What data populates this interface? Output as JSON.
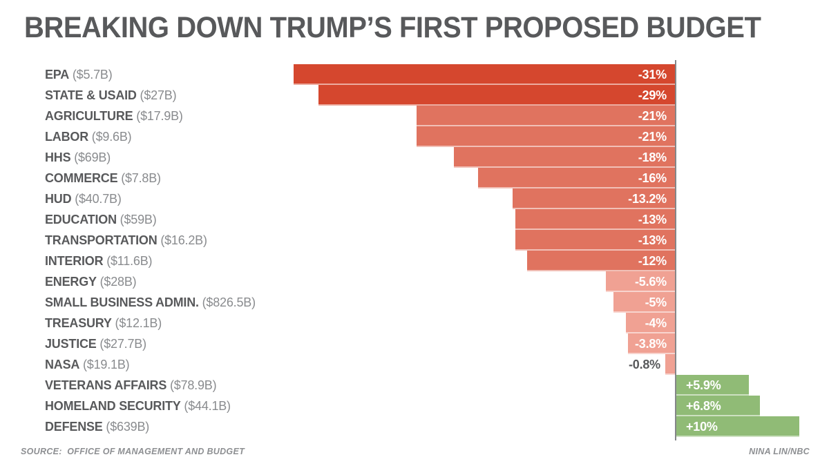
{
  "title": "BREAKING DOWN TRUMP’S FIRST PROPOSED BUDGET",
  "footer": {
    "source": "SOURCE:  OFFICE OF MANAGEMENT AND BUDGET",
    "credit": "NINA LIN/NBC"
  },
  "colors": {
    "dark_red": "#d5472e",
    "salmon": "#e0735f",
    "pink": "#f0a193",
    "green": "#90bb76",
    "axis_line": "#848689",
    "title_text": "#58595b",
    "dept_text": "#58595b",
    "budget_text": "#898b8e",
    "bar_label_text": "#ffffff",
    "outside_label_text": "#58595b"
  },
  "chart_data": {
    "type": "bar",
    "orientation": "horizontal",
    "title": "BREAKING DOWN TRUMP’S FIRST PROPOSED BUDGET",
    "unit": "percent change in proposed budget",
    "xlim": [
      -31,
      10
    ],
    "grid": false,
    "legend": false,
    "rows": [
      {
        "dept": "EPA",
        "budget": "($5.7B)",
        "pct": -31,
        "label": "-31%",
        "shade": "dark_red"
      },
      {
        "dept": "STATE & USAID",
        "budget": "($27B)",
        "pct": -29,
        "label": "-29%",
        "shade": "dark_red"
      },
      {
        "dept": "AGRICULTURE",
        "budget": "($17.9B)",
        "pct": -21,
        "label": "-21%",
        "shade": "salmon"
      },
      {
        "dept": "LABOR",
        "budget": "($9.6B)",
        "pct": -21,
        "label": "-21%",
        "shade": "salmon"
      },
      {
        "dept": "HHS",
        "budget": "($69B)",
        "pct": -18,
        "label": "-18%",
        "shade": "salmon"
      },
      {
        "dept": "COMMERCE",
        "budget": "($7.8B)",
        "pct": -16,
        "label": "-16%",
        "shade": "salmon"
      },
      {
        "dept": "HUD",
        "budget": "($40.7B)",
        "pct": -13.2,
        "label": "-13.2%",
        "shade": "salmon"
      },
      {
        "dept": "EDUCATION",
        "budget": "($59B)",
        "pct": -13,
        "label": "-13%",
        "shade": "salmon"
      },
      {
        "dept": "TRANSPORTATION",
        "budget": "($16.2B)",
        "pct": -13,
        "label": "-13%",
        "shade": "salmon"
      },
      {
        "dept": "INTERIOR",
        "budget": "($11.6B)",
        "pct": -12,
        "label": "-12%",
        "shade": "salmon"
      },
      {
        "dept": "ENERGY",
        "budget": "($28B)",
        "pct": -5.6,
        "label": "-5.6%",
        "shade": "pink"
      },
      {
        "dept": "SMALL BUSINESS ADMIN.",
        "budget": "($826.5B)",
        "pct": -5,
        "label": "-5%",
        "shade": "pink"
      },
      {
        "dept": "TREASURY",
        "budget": "($12.1B)",
        "pct": -4,
        "label": "-4%",
        "shade": "pink"
      },
      {
        "dept": "JUSTICE",
        "budget": "($27.7B)",
        "pct": -3.8,
        "label": "-3.8%",
        "shade": "pink"
      },
      {
        "dept": "NASA",
        "budget": "($19.1B)",
        "pct": -0.8,
        "label": "-0.8%",
        "shade": "pink",
        "label_outside": true
      },
      {
        "dept": "VETERANS AFFAIRS",
        "budget": "($78.9B)",
        "pct": 5.9,
        "label": "+5.9%",
        "shade": "green"
      },
      {
        "dept": "HOMELAND SECURITY",
        "budget": "($44.1B)",
        "pct": 6.8,
        "label": "+6.8%",
        "shade": "green"
      },
      {
        "dept": "DEFENSE",
        "budget": "($639B)",
        "pct": 10,
        "label": "+10%",
        "shade": "green"
      }
    ]
  }
}
